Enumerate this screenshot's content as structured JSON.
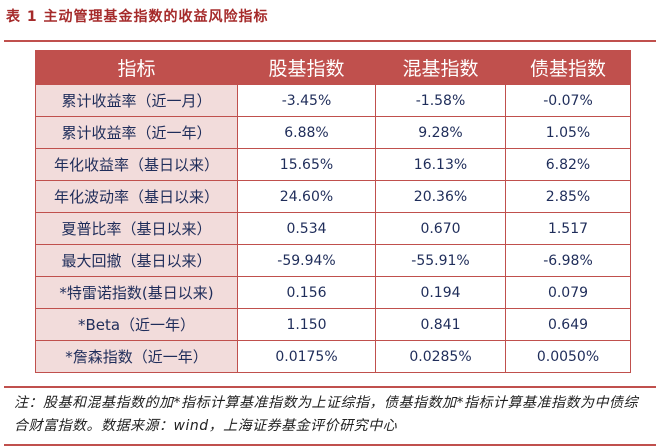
{
  "title": "表 1  主动管理基金指数的收益风险指标",
  "table": {
    "header": [
      "指标",
      "股基指数",
      "混基指数",
      "债基指数"
    ],
    "rows": [
      [
        "累计收益率（近一月）",
        "-3.45%",
        "-1.58%",
        "-0.07%"
      ],
      [
        "累计收益率（近一年）",
        "6.88%",
        "9.28%",
        "1.05%"
      ],
      [
        "年化收益率（基日以来）",
        "15.65%",
        "16.13%",
        "6.82%"
      ],
      [
        "年化波动率（基日以来）",
        "24.60%",
        "20.36%",
        "2.85%"
      ],
      [
        "夏普比率（基日以来）",
        "0.534",
        "0.670",
        "1.517"
      ],
      [
        "最大回撤（基日以来）",
        "-59.94%",
        "-55.91%",
        "-6.98%"
      ],
      [
        "*特雷诺指数(基日以来)",
        "0.156",
        "0.194",
        "0.079"
      ],
      [
        "*Beta（近一年）",
        "1.150",
        "0.841",
        "0.649"
      ],
      [
        "*詹森指数（近一年）",
        "0.0175%",
        "0.0285%",
        "0.0050%"
      ]
    ]
  },
  "note": "注：股基和混基指数的加*指标计算基准指数为上证综指，债基指数加*指标计算基准指数为中债综合财富指数。数据来源：wind，上海证券基金评价研究中心"
}
